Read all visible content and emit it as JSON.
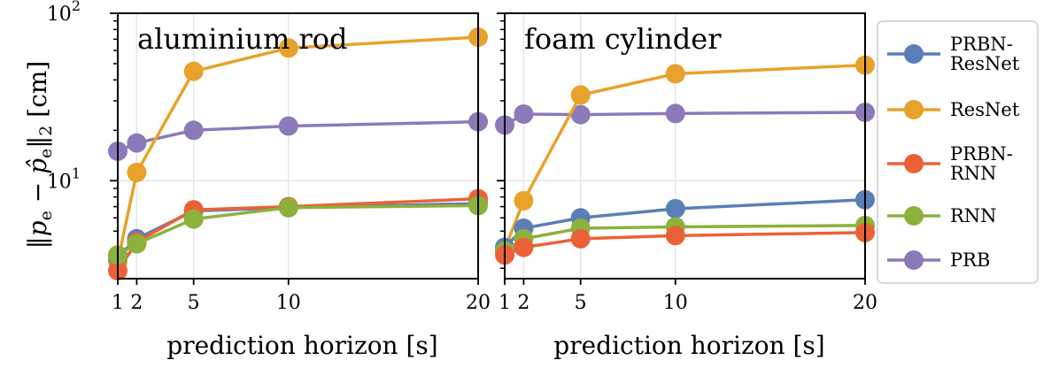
{
  "chart_data": {
    "type": "line",
    "x_scale": "linear",
    "y_scale": "log",
    "xlabel": "prediction horizon [s]",
    "ylabel": "‖p_e − p̂_e‖₂ [cm]",
    "ylabel_parts": {
      "norm_open": "‖",
      "p": "p",
      "e1": "e",
      "minus": " − ",
      "phat": "p̂",
      "e2": "e",
      "norm_close": "‖",
      "sub2": "2",
      "unit": " [cm]"
    },
    "xlim": [
      1,
      20
    ],
    "ylim": [
      2.6,
      100
    ],
    "xticks": [
      1,
      2,
      5,
      10,
      20
    ],
    "xtick_labels": [
      "1",
      "2",
      "5",
      "10",
      "20"
    ],
    "yticks": [
      10,
      100
    ],
    "ytick_labels": [
      {
        "base": "10",
        "exp": "1"
      },
      {
        "base": "10",
        "exp": "2"
      }
    ],
    "x": [
      1,
      2,
      5,
      10,
      20
    ],
    "series_colors": {
      "PRBN-ResNet": "#5a7fb7",
      "ResNet": "#e8a22b",
      "PRBN-RNN": "#eb6137",
      "RNN": "#8db13d",
      "PRB": "#8c7ab8"
    },
    "legend": [
      {
        "name": "PRBN-ResNet",
        "lines": [
          "PRBN-",
          "ResNet"
        ]
      },
      {
        "name": "ResNet",
        "lines": [
          "ResNet"
        ]
      },
      {
        "name": "PRBN-RNN",
        "lines": [
          "PRBN-",
          "RNN"
        ]
      },
      {
        "name": "RNN",
        "lines": [
          "RNN"
        ]
      },
      {
        "name": "PRB",
        "lines": [
          "PRB"
        ]
      }
    ],
    "legend_position": "right",
    "panels": [
      {
        "title": "aluminium rod",
        "show_ylabel": true,
        "series": [
          {
            "name": "PRB",
            "values": [
              15.0,
              16.8,
              20.0,
              21.2,
              22.5
            ]
          },
          {
            "name": "ResNet",
            "values": [
              3.3,
              11.2,
              45.0,
              62.0,
              72.0
            ]
          },
          {
            "name": "PRBN-ResNet",
            "values": [
              3.5,
              4.5,
              6.6,
              6.9,
              7.3
            ]
          },
          {
            "name": "PRBN-RNN",
            "values": [
              2.9,
              4.3,
              6.7,
              7.0,
              7.8
            ]
          },
          {
            "name": "RNN",
            "values": [
              3.6,
              4.2,
              5.9,
              6.9,
              7.1
            ]
          }
        ]
      },
      {
        "title": "foam cylinder",
        "show_ylabel": false,
        "series": [
          {
            "name": "PRB",
            "values": [
              21.5,
              25.0,
              24.8,
              25.2,
              25.6
            ]
          },
          {
            "name": "ResNet",
            "values": [
              3.9,
              7.6,
              32.5,
              43.5,
              49.0
            ]
          },
          {
            "name": "PRBN-ResNet",
            "values": [
              4.0,
              5.2,
              6.0,
              6.8,
              7.7
            ]
          },
          {
            "name": "RNN",
            "values": [
              3.8,
              4.5,
              5.2,
              5.3,
              5.4
            ]
          },
          {
            "name": "PRBN-RNN",
            "values": [
              3.6,
              4.0,
              4.5,
              4.7,
              4.9
            ]
          }
        ]
      }
    ]
  }
}
